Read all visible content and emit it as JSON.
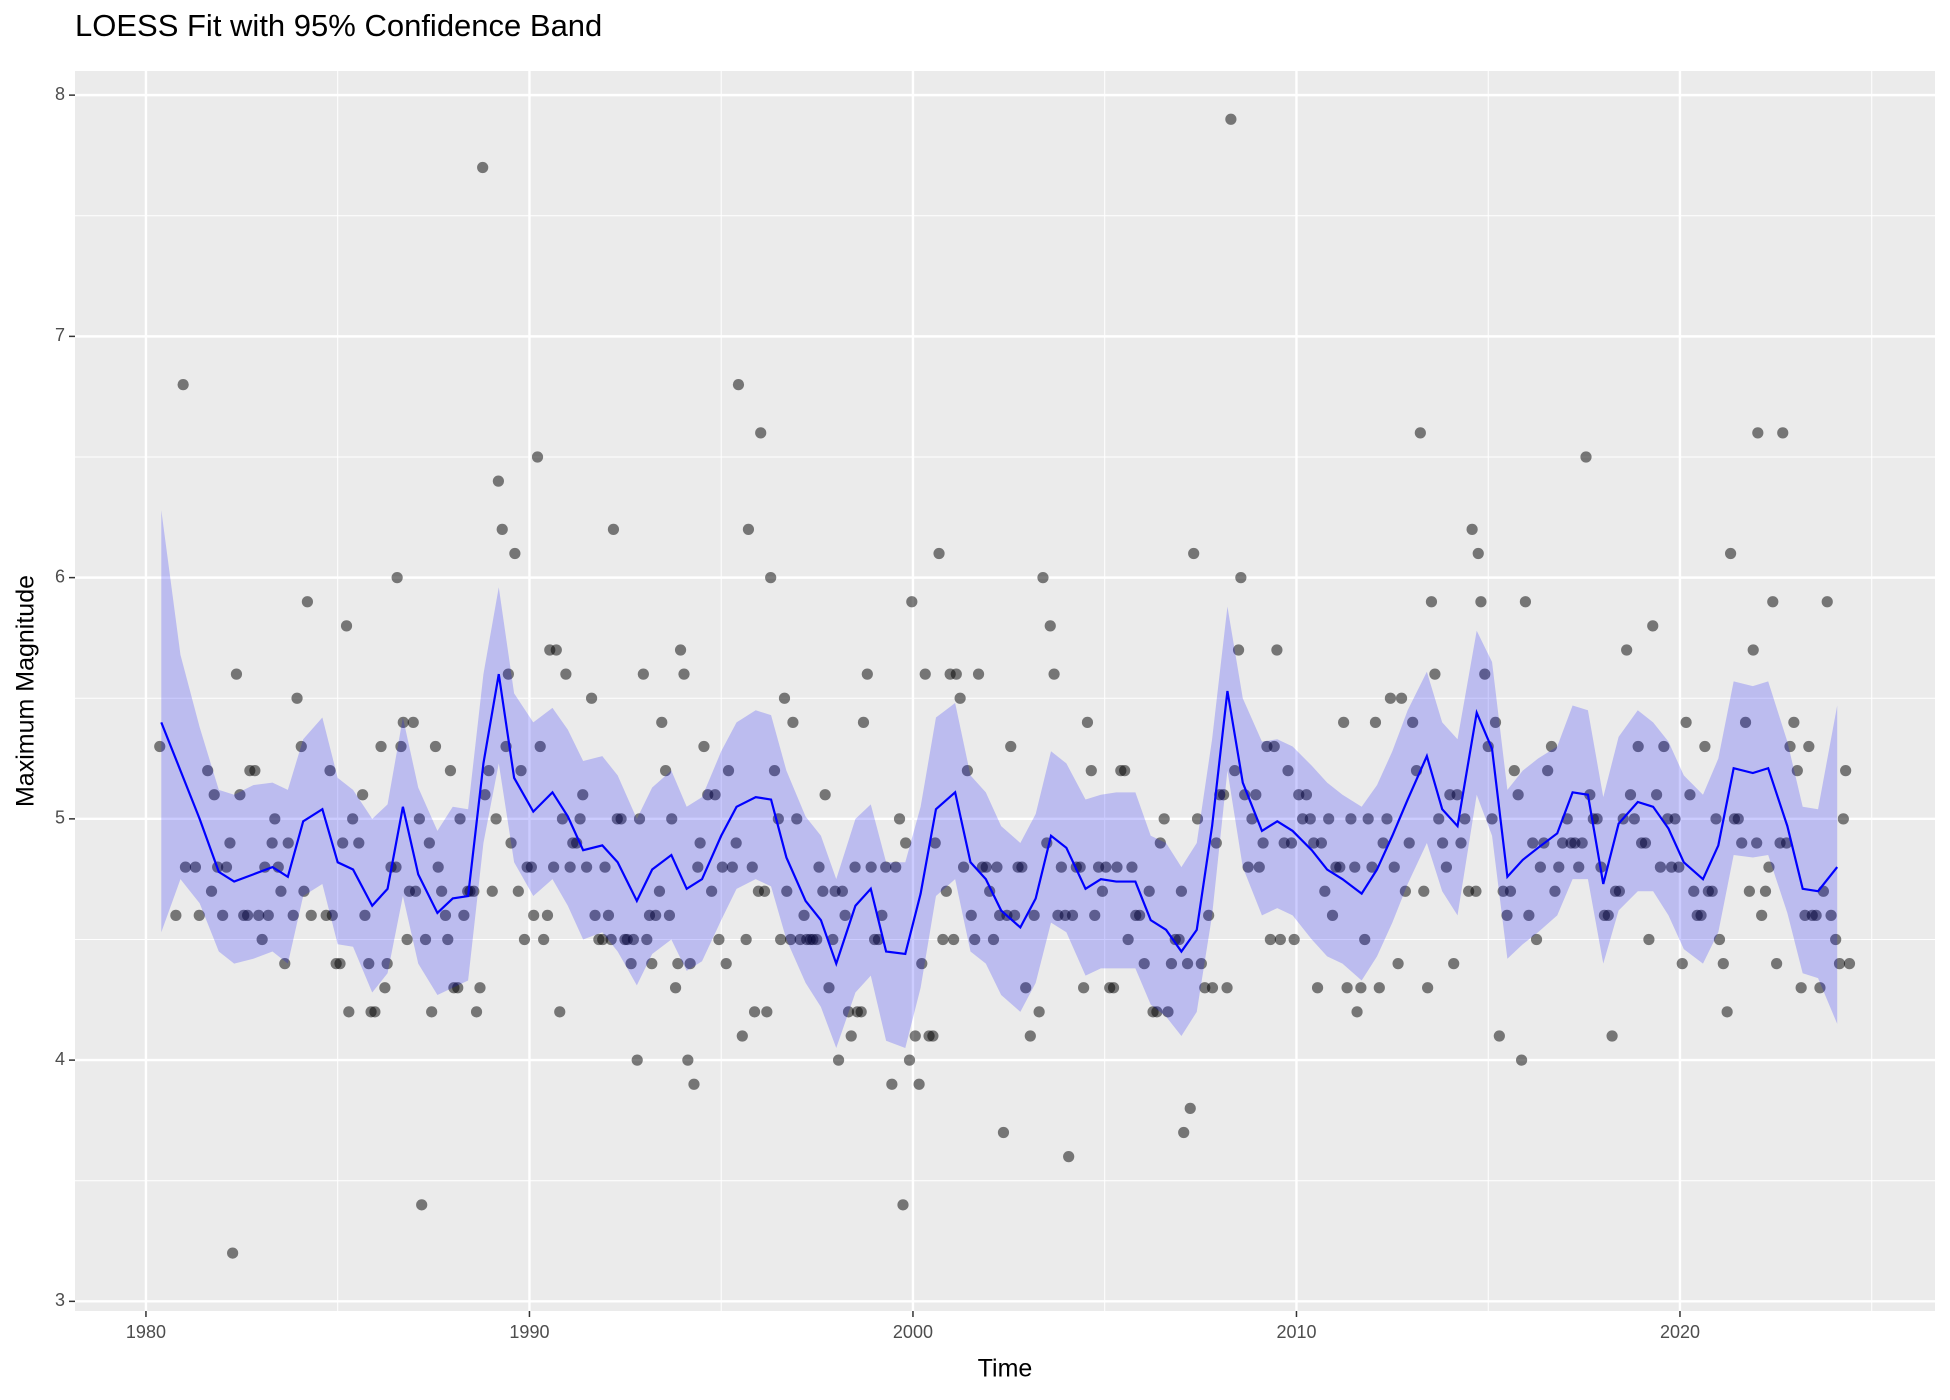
{
  "chart_data": {
    "type": "scatter",
    "title": "LOESS Fit with 95% Confidence Band",
    "x_label": "Time",
    "y_label": "Maximum Magnitude",
    "xlim": [
      1978.15,
      2026.65
    ],
    "ylim": [
      2.96,
      8.1
    ],
    "xticks": [
      1980,
      1990,
      2000,
      2010,
      2020
    ],
    "yticks": [
      3,
      4,
      5,
      6,
      7,
      8
    ],
    "xminor": [
      1985,
      1995,
      2005,
      2015,
      2025
    ],
    "yminor": [
      3.5,
      4.5,
      5.5,
      6.5,
      7.5
    ],
    "grid": true,
    "color": "#000000",
    "alpha": 0.5,
    "x": [
      1980.36,
      1980.78,
      1980.97,
      1981.03,
      1981.29,
      1981.39,
      1981.61,
      1981.71,
      1981.78,
      1981.87,
      1982.0,
      1982.1,
      1982.19,
      1982.26,
      1982.36,
      1982.45,
      1982.55,
      1982.65,
      1982.71,
      1982.84,
      1982.94,
      1983.03,
      1983.1,
      1983.19,
      1983.29,
      1983.36,
      1983.45,
      1983.52,
      1983.62,
      1983.71,
      1983.84,
      1983.94,
      1984.05,
      1984.12,
      1984.21,
      1984.31,
      1984.7,
      1984.8,
      1984.86,
      1984.96,
      1985.06,
      1985.13,
      1985.23,
      1985.29,
      1985.39,
      1985.55,
      1985.65,
      1985.71,
      1985.81,
      1985.87,
      1985.97,
      1986.13,
      1986.23,
      1986.29,
      1986.39,
      1986.52,
      1986.55,
      1986.65,
      1986.71,
      1986.81,
      1986.87,
      1986.97,
      1987.03,
      1987.13,
      1987.19,
      1987.29,
      1987.39,
      1987.45,
      1987.55,
      1987.62,
      1987.71,
      1987.81,
      1987.87,
      1987.94,
      1988.03,
      1988.13,
      1988.19,
      1988.29,
      1988.39,
      1988.45,
      1988.55,
      1988.62,
      1988.71,
      1988.78,
      1988.84,
      1988.94,
      1989.03,
      1989.13,
      1989.19,
      1989.29,
      1989.39,
      1989.45,
      1989.52,
      1989.62,
      1989.71,
      1989.78,
      1989.87,
      1989.94,
      1990.05,
      1990.11,
      1990.21,
      1990.28,
      1990.37,
      1990.47,
      1990.53,
      1990.63,
      1990.7,
      1990.79,
      1990.86,
      1990.95,
      1991.06,
      1991.13,
      1991.23,
      1991.32,
      1991.39,
      1991.49,
      1991.62,
      1991.71,
      1991.81,
      1991.91,
      1991.97,
      1992.06,
      1992.13,
      1992.19,
      1992.29,
      1992.39,
      1992.49,
      1992.55,
      1992.65,
      1992.71,
      1992.81,
      1992.87,
      1992.97,
      1993.06,
      1993.13,
      1993.19,
      1993.29,
      1993.39,
      1993.45,
      1993.55,
      1993.65,
      1993.71,
      1993.81,
      1993.87,
      1993.94,
      1994.03,
      1994.13,
      1994.19,
      1994.29,
      1994.39,
      1994.45,
      1994.55,
      1994.65,
      1994.75,
      1994.84,
      1994.94,
      1995.03,
      1995.13,
      1995.19,
      1995.29,
      1995.39,
      1995.45,
      1995.55,
      1995.65,
      1995.71,
      1995.81,
      1995.87,
      1995.97,
      1996.03,
      1996.13,
      1996.19,
      1996.29,
      1996.39,
      1996.49,
      1996.55,
      1996.65,
      1996.71,
      1996.81,
      1996.87,
      1996.97,
      1997.06,
      1997.16,
      1997.23,
      1997.32,
      1997.39,
      1997.49,
      1997.55,
      1997.65,
      1997.71,
      1997.81,
      1997.91,
      1997.97,
      1998.06,
      1998.16,
      1998.23,
      1998.32,
      1998.39,
      1998.49,
      1998.55,
      1998.65,
      1998.71,
      1998.81,
      1998.91,
      1999.0,
      1999.1,
      1999.19,
      1999.29,
      1999.45,
      1999.55,
      1999.65,
      1999.74,
      1999.81,
      1999.91,
      1999.97,
      2000.06,
      2000.16,
      2000.23,
      2000.32,
      2000.42,
      2000.52,
      2000.58,
      2000.68,
      2000.78,
      2000.87,
      2000.97,
      2001.06,
      2001.13,
      2001.23,
      2001.32,
      2001.42,
      2001.52,
      2001.61,
      2001.71,
      2001.81,
      2001.91,
      2002.0,
      2002.1,
      2002.19,
      2002.26,
      2002.36,
      2002.45,
      2002.55,
      2002.65,
      2002.74,
      2002.84,
      2002.94,
      2003.06,
      2003.16,
      2003.29,
      2003.39,
      2003.49,
      2003.58,
      2003.68,
      2003.78,
      2003.87,
      2003.97,
      2004.06,
      2004.16,
      2004.26,
      2004.36,
      2004.45,
      2004.55,
      2004.65,
      2004.74,
      2004.84,
      2004.94,
      2005.03,
      2005.13,
      2005.23,
      2005.32,
      2005.42,
      2005.52,
      2005.61,
      2005.71,
      2005.81,
      2005.91,
      2006.03,
      2006.16,
      2006.26,
      2006.36,
      2006.45,
      2006.55,
      2006.65,
      2006.74,
      2006.84,
      2006.94,
      2007.0,
      2007.06,
      2007.16,
      2007.23,
      2007.32,
      2007.42,
      2007.52,
      2007.61,
      2007.71,
      2007.81,
      2007.91,
      2008.0,
      2008.1,
      2008.19,
      2008.29,
      2008.39,
      2008.49,
      2008.55,
      2008.65,
      2008.74,
      2008.84,
      2008.94,
      2009.03,
      2009.13,
      2009.23,
      2009.32,
      2009.42,
      2009.49,
      2009.58,
      2009.68,
      2009.78,
      2009.87,
      2009.94,
      2010.06,
      2010.16,
      2010.26,
      2010.36,
      2010.45,
      2010.55,
      2010.65,
      2010.74,
      2010.84,
      2010.94,
      2011.03,
      2011.13,
      2011.23,
      2011.32,
      2011.42,
      2011.52,
      2011.58,
      2011.68,
      2011.78,
      2011.87,
      2011.97,
      2012.06,
      2012.16,
      2012.26,
      2012.36,
      2012.45,
      2012.55,
      2012.65,
      2012.74,
      2012.84,
      2012.94,
      2013.03,
      2013.13,
      2013.23,
      2013.32,
      2013.42,
      2013.52,
      2013.61,
      2013.71,
      2013.81,
      2013.91,
      2014.0,
      2014.1,
      2014.19,
      2014.29,
      2014.39,
      2014.49,
      2014.58,
      2014.68,
      2014.74,
      2014.81,
      2014.91,
      2015.0,
      2015.1,
      2015.19,
      2015.29,
      2015.39,
      2015.49,
      2015.58,
      2015.68,
      2015.78,
      2015.87,
      2015.97,
      2016.06,
      2016.16,
      2016.26,
      2016.36,
      2016.45,
      2016.55,
      2016.65,
      2016.74,
      2016.84,
      2016.94,
      2017.06,
      2017.16,
      2017.26,
      2017.36,
      2017.45,
      2017.55,
      2017.65,
      2017.74,
      2017.84,
      2017.94,
      2018.03,
      2018.13,
      2018.23,
      2018.32,
      2018.42,
      2018.52,
      2018.61,
      2018.71,
      2018.81,
      2018.91,
      2019.0,
      2019.1,
      2019.19,
      2019.29,
      2019.39,
      2019.49,
      2019.58,
      2019.68,
      2019.78,
      2019.87,
      2019.97,
      2020.06,
      2020.16,
      2020.26,
      2020.36,
      2020.45,
      2020.55,
      2020.65,
      2020.74,
      2020.84,
      2020.94,
      2021.03,
      2021.13,
      2021.23,
      2021.32,
      2021.42,
      2021.52,
      2021.61,
      2021.71,
      2021.81,
      2021.91,
      2022.0,
      2022.03,
      2022.13,
      2022.23,
      2022.32,
      2022.42,
      2022.52,
      2022.61,
      2022.68,
      2022.78,
      2022.87,
      2022.97,
      2023.06,
      2023.16,
      2023.26,
      2023.36,
      2023.45,
      2023.55,
      2023.65,
      2023.74,
      2023.84,
      2023.94,
      2024.06,
      2024.16,
      2024.26,
      2024.32,
      2024.42
    ],
    "values": [
      5.3,
      4.6,
      6.8,
      4.8,
      4.8,
      4.6,
      5.2,
      4.7,
      5.1,
      4.8,
      4.6,
      4.8,
      4.9,
      3.2,
      5.6,
      5.1,
      4.6,
      4.6,
      5.2,
      5.2,
      4.6,
      4.5,
      4.8,
      4.6,
      4.9,
      5.0,
      4.8,
      4.7,
      4.4,
      4.9,
      4.6,
      5.5,
      5.3,
      4.7,
      5.9,
      4.6,
      4.6,
      5.2,
      4.6,
      4.4,
      4.4,
      4.9,
      5.8,
      4.2,
      5.0,
      4.9,
      5.1,
      4.6,
      4.4,
      4.2,
      4.2,
      5.3,
      4.3,
      4.4,
      4.8,
      4.8,
      6.0,
      5.3,
      5.4,
      4.5,
      4.7,
      5.4,
      4.7,
      5.0,
      3.4,
      4.5,
      4.9,
      4.2,
      5.3,
      4.8,
      4.7,
      4.6,
      4.5,
      5.2,
      4.3,
      4.3,
      5.0,
      4.6,
      4.7,
      4.7,
      4.7,
      4.2,
      4.3,
      7.7,
      5.1,
      5.2,
      4.7,
      5.0,
      6.4,
      6.2,
      5.3,
      5.6,
      4.9,
      6.1,
      4.7,
      5.2,
      4.5,
      4.8,
      4.8,
      4.6,
      6.5,
      5.3,
      4.5,
      4.6,
      5.7,
      4.8,
      5.7,
      4.2,
      5.0,
      5.6,
      4.8,
      4.9,
      4.9,
      5.0,
      5.1,
      4.8,
      5.5,
      4.6,
      4.5,
      4.5,
      4.8,
      4.6,
      4.5,
      6.2,
      5.0,
      5.0,
      4.5,
      4.5,
      4.4,
      4.5,
      4.0,
      5.0,
      5.6,
      4.5,
      4.6,
      4.4,
      4.6,
      4.7,
      5.4,
      5.2,
      4.6,
      5.0,
      4.3,
      4.4,
      5.7,
      5.6,
      4.0,
      4.4,
      3.9,
      4.8,
      4.9,
      5.3,
      5.1,
      4.7,
      5.1,
      4.5,
      4.8,
      4.4,
      5.2,
      4.8,
      4.9,
      6.8,
      4.1,
      4.5,
      6.2,
      4.8,
      4.2,
      4.7,
      6.6,
      4.7,
      4.2,
      6.0,
      5.2,
      5.0,
      4.5,
      5.5,
      4.7,
      4.5,
      5.4,
      5.0,
      4.5,
      4.6,
      4.5,
      4.5,
      4.5,
      4.5,
      4.8,
      4.7,
      5.1,
      4.3,
      4.5,
      4.7,
      4.0,
      4.7,
      4.6,
      4.2,
      4.1,
      4.8,
      4.2,
      4.2,
      5.4,
      5.6,
      4.8,
      4.5,
      4.5,
      4.6,
      4.8,
      3.9,
      4.8,
      5.0,
      3.4,
      4.9,
      4.0,
      5.9,
      4.1,
      3.9,
      4.4,
      5.6,
      4.1,
      4.1,
      4.9,
      6.1,
      4.5,
      4.7,
      5.6,
      4.5,
      5.6,
      5.5,
      4.8,
      5.2,
      4.6,
      4.5,
      5.6,
      4.8,
      4.8,
      4.7,
      4.5,
      4.8,
      4.6,
      3.7,
      4.6,
      5.3,
      4.6,
      4.8,
      4.8,
      4.3,
      4.1,
      4.6,
      4.2,
      6.0,
      4.9,
      5.8,
      5.6,
      4.6,
      4.8,
      4.6,
      3.6,
      4.6,
      4.8,
      4.8,
      4.3,
      5.4,
      5.2,
      4.6,
      4.8,
      4.7,
      4.8,
      4.3,
      4.3,
      4.8,
      5.2,
      5.2,
      4.5,
      4.8,
      4.6,
      4.6,
      4.4,
      4.7,
      4.2,
      4.2,
      4.9,
      5.0,
      4.2,
      4.4,
      4.5,
      4.5,
      4.7,
      3.7,
      4.4,
      3.8,
      6.1,
      5.0,
      4.4,
      4.3,
      4.6,
      4.3,
      4.9,
      5.1,
      5.1,
      4.3,
      7.9,
      5.2,
      5.7,
      6.0,
      5.1,
      4.8,
      5.0,
      5.1,
      4.8,
      4.9,
      5.3,
      4.5,
      5.3,
      5.7,
      4.5,
      4.9,
      5.2,
      4.9,
      4.5,
      5.1,
      5.0,
      5.1,
      5.0,
      4.9,
      4.3,
      4.9,
      4.7,
      5.0,
      4.6,
      4.8,
      4.8,
      5.4,
      4.3,
      5.0,
      4.8,
      4.2,
      4.3,
      4.5,
      5.0,
      4.8,
      5.4,
      4.3,
      4.9,
      5.0,
      5.5,
      4.8,
      4.4,
      5.5,
      4.7,
      4.9,
      5.4,
      5.2,
      6.6,
      4.7,
      4.3,
      5.9,
      5.6,
      5.0,
      4.9,
      4.8,
      5.1,
      4.4,
      5.1,
      4.9,
      5.0,
      4.7,
      6.2,
      4.7,
      6.1,
      5.9,
      5.6,
      5.3,
      5.0,
      5.4,
      4.1,
      4.7,
      4.6,
      4.7,
      5.2,
      5.1,
      4.0,
      5.9,
      4.6,
      4.9,
      4.5,
      4.8,
      4.9,
      5.2,
      5.3,
      4.7,
      4.8,
      4.9,
      5.0,
      4.9,
      4.9,
      4.8,
      4.9,
      6.5,
      5.1,
      5.0,
      5.0,
      4.8,
      4.6,
      4.6,
      4.1,
      4.7,
      4.7,
      5.0,
      5.7,
      5.1,
      5.0,
      5.3,
      4.9,
      4.9,
      4.5,
      5.8,
      5.1,
      4.8,
      5.3,
      5.0,
      4.8,
      5.0,
      4.8,
      4.4,
      5.4,
      5.1,
      4.7,
      4.6,
      4.6,
      5.3,
      4.7,
      4.7,
      5.0,
      4.5,
      4.4,
      4.2,
      6.1,
      5.0,
      5.0,
      4.9,
      5.4,
      4.7,
      5.7,
      4.9,
      6.6,
      4.6,
      4.7,
      4.8,
      5.9,
      4.4,
      4.9,
      6.6,
      4.9,
      5.3,
      5.4,
      5.2,
      4.3,
      4.6,
      5.3,
      4.6,
      4.6,
      4.3,
      4.7,
      5.9,
      4.6,
      4.5,
      4.4,
      5.0,
      5.2,
      4.4
    ],
    "fit": {
      "type": "line",
      "color": "#0000ff",
      "band_color": "#0000ff",
      "band_alpha": 0.2,
      "x": [
        1980.4,
        1980.9,
        1981.4,
        1981.9,
        1982.3,
        1982.8,
        1983.3,
        1983.7,
        1984.1,
        1984.6,
        1985.0,
        1985.4,
        1985.9,
        1986.3,
        1986.7,
        1987.1,
        1987.6,
        1988.0,
        1988.4,
        1988.8,
        1989.2,
        1989.6,
        1990.1,
        1990.6,
        1991.0,
        1991.4,
        1991.9,
        1992.3,
        1992.8,
        1993.2,
        1993.7,
        1994.1,
        1994.5,
        1995.0,
        1995.4,
        1995.9,
        1996.3,
        1996.7,
        1997.2,
        1997.6,
        1998.0,
        1998.5,
        1998.9,
        1999.3,
        1999.8,
        2000.2,
        2000.6,
        2001.1,
        2001.5,
        2001.9,
        2002.3,
        2002.8,
        2003.2,
        2003.6,
        2004.0,
        2004.5,
        2004.9,
        2005.3,
        2005.8,
        2006.2,
        2006.6,
        2007.0,
        2007.4,
        2007.8,
        2008.2,
        2008.6,
        2009.1,
        2009.5,
        2009.9,
        2010.4,
        2010.8,
        2011.2,
        2011.7,
        2012.1,
        2012.5,
        2012.9,
        2013.4,
        2013.8,
        2014.2,
        2014.7,
        2015.1,
        2015.5,
        2015.9,
        2016.3,
        2016.8,
        2017.2,
        2017.6,
        2018.0,
        2018.4,
        2018.9,
        2019.3,
        2019.7,
        2020.1,
        2020.6,
        2021.0,
        2021.4,
        2021.9,
        2022.3,
        2022.8,
        2023.2,
        2023.6,
        2024.1
      ],
      "values": [
        5.4,
        5.2,
        5.0,
        4.78,
        4.74,
        4.77,
        4.8,
        4.76,
        4.99,
        5.04,
        4.82,
        4.79,
        4.64,
        4.71,
        5.05,
        4.77,
        4.61,
        4.67,
        4.68,
        5.23,
        5.6,
        5.17,
        5.03,
        5.11,
        5.01,
        4.87,
        4.89,
        4.82,
        4.66,
        4.79,
        4.85,
        4.71,
        4.75,
        4.93,
        5.05,
        5.09,
        5.08,
        4.84,
        4.66,
        4.58,
        4.4,
        4.64,
        4.71,
        4.45,
        4.44,
        4.69,
        5.04,
        5.11,
        4.82,
        4.75,
        4.62,
        4.55,
        4.67,
        4.93,
        4.88,
        4.71,
        4.75,
        4.74,
        4.74,
        4.58,
        4.54,
        4.45,
        4.54,
        4.97,
        5.53,
        5.15,
        4.95,
        4.99,
        4.95,
        4.87,
        4.79,
        4.75,
        4.69,
        4.79,
        4.93,
        5.08,
        5.26,
        5.04,
        4.97,
        5.44,
        5.29,
        4.76,
        4.83,
        4.88,
        4.94,
        5.11,
        5.1,
        4.73,
        4.98,
        5.07,
        5.05,
        4.96,
        4.82,
        4.75,
        4.89,
        5.21,
        5.19,
        5.21,
        4.97,
        4.71,
        4.7,
        4.8
      ],
      "lower": [
        4.53,
        4.75,
        4.65,
        4.45,
        4.4,
        4.42,
        4.45,
        4.4,
        4.68,
        4.73,
        4.48,
        4.47,
        4.28,
        4.36,
        4.68,
        4.4,
        4.27,
        4.3,
        4.33,
        4.9,
        5.23,
        4.82,
        4.68,
        4.75,
        4.64,
        4.5,
        4.53,
        4.45,
        4.31,
        4.44,
        4.5,
        4.37,
        4.41,
        4.58,
        4.71,
        4.75,
        4.72,
        4.5,
        4.32,
        4.22,
        4.05,
        4.28,
        4.35,
        4.08,
        4.05,
        4.3,
        4.68,
        4.75,
        4.45,
        4.4,
        4.27,
        4.2,
        4.32,
        4.57,
        4.53,
        4.35,
        4.38,
        4.38,
        4.38,
        4.23,
        4.18,
        4.1,
        4.2,
        4.6,
        5.2,
        4.8,
        4.6,
        4.63,
        4.6,
        4.5,
        4.43,
        4.4,
        4.33,
        4.43,
        4.57,
        4.73,
        4.9,
        4.7,
        4.6,
        5.1,
        4.93,
        4.42,
        4.48,
        4.53,
        4.6,
        4.75,
        4.75,
        4.4,
        4.62,
        4.7,
        4.7,
        4.6,
        4.46,
        4.4,
        4.53,
        4.85,
        4.84,
        4.85,
        4.61,
        4.36,
        4.34,
        4.15
      ],
      "upper": [
        6.28,
        5.68,
        5.38,
        5.12,
        5.1,
        5.14,
        5.15,
        5.12,
        5.33,
        5.42,
        5.17,
        5.12,
        5.0,
        5.06,
        5.42,
        5.13,
        4.95,
        5.05,
        5.04,
        5.6,
        5.96,
        5.52,
        5.4,
        5.46,
        5.37,
        5.24,
        5.26,
        5.18,
        5.0,
        5.13,
        5.2,
        5.05,
        5.09,
        5.28,
        5.4,
        5.45,
        5.43,
        5.2,
        5.01,
        4.93,
        4.75,
        5.0,
        5.06,
        4.82,
        4.82,
        5.05,
        5.42,
        5.48,
        5.18,
        5.11,
        4.97,
        4.9,
        5.02,
        5.28,
        5.23,
        5.08,
        5.1,
        5.11,
        5.11,
        4.93,
        4.9,
        4.8,
        4.9,
        5.33,
        5.88,
        5.5,
        5.32,
        5.33,
        5.3,
        5.22,
        5.15,
        5.1,
        5.05,
        5.14,
        5.28,
        5.45,
        5.61,
        5.4,
        5.33,
        5.78,
        5.65,
        5.12,
        5.2,
        5.25,
        5.3,
        5.47,
        5.45,
        5.09,
        5.34,
        5.45,
        5.4,
        5.32,
        5.18,
        5.1,
        5.25,
        5.57,
        5.55,
        5.57,
        5.32,
        5.05,
        5.04,
        5.47
      ]
    }
  }
}
